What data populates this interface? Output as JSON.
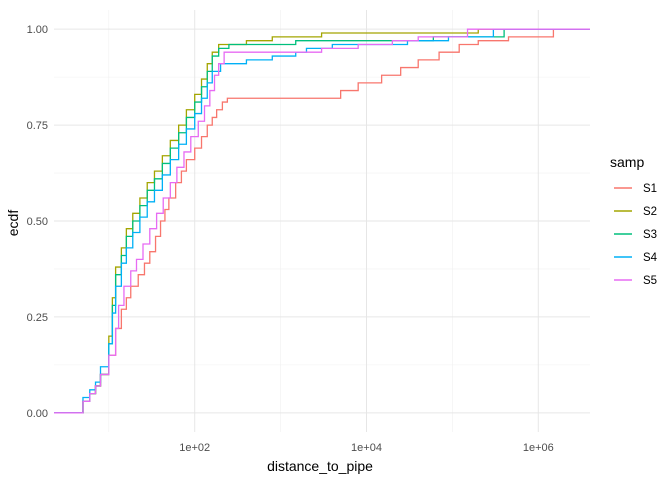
{
  "chart_data": {
    "type": "line",
    "subtype": "ecdf-step",
    "xlabel": "distance_to_pipe",
    "ylabel": "ecdf",
    "x_scale": "log10",
    "xlim": [
      2.3,
      4000000
    ],
    "ylim": [
      -0.05,
      1.05
    ],
    "x_ticks": [
      {
        "value": 100,
        "label": "1e+02"
      },
      {
        "value": 10000,
        "label": "1e+04"
      },
      {
        "value": 1000000,
        "label": "1e+06"
      }
    ],
    "y_ticks": [
      {
        "value": 0,
        "label": "0.00"
      },
      {
        "value": 0.25,
        "label": "0.25"
      },
      {
        "value": 0.5,
        "label": "0.50"
      },
      {
        "value": 0.75,
        "label": "0.75"
      },
      {
        "value": 1,
        "label": "1.00"
      }
    ],
    "grid": true,
    "legend": {
      "title": "samp",
      "position": "right"
    },
    "series": [
      {
        "name": "S1",
        "color": "#F8766D",
        "points": [
          [
            2.3,
            0
          ],
          [
            5,
            0
          ],
          [
            5,
            0.03
          ],
          [
            6,
            0.03
          ],
          [
            6,
            0.05
          ],
          [
            7,
            0.05
          ],
          [
            7,
            0.07
          ],
          [
            8,
            0.07
          ],
          [
            8,
            0.1
          ],
          [
            10,
            0.1
          ],
          [
            10,
            0.15
          ],
          [
            12,
            0.15
          ],
          [
            12,
            0.22
          ],
          [
            14,
            0.22
          ],
          [
            14,
            0.27
          ],
          [
            16,
            0.27
          ],
          [
            16,
            0.3
          ],
          [
            18,
            0.3
          ],
          [
            18,
            0.33
          ],
          [
            22,
            0.33
          ],
          [
            22,
            0.36
          ],
          [
            26,
            0.36
          ],
          [
            26,
            0.39
          ],
          [
            30,
            0.39
          ],
          [
            30,
            0.42
          ],
          [
            35,
            0.42
          ],
          [
            35,
            0.46
          ],
          [
            40,
            0.46
          ],
          [
            40,
            0.5
          ],
          [
            45,
            0.5
          ],
          [
            45,
            0.53
          ],
          [
            50,
            0.53
          ],
          [
            50,
            0.56
          ],
          [
            60,
            0.56
          ],
          [
            60,
            0.6
          ],
          [
            70,
            0.6
          ],
          [
            70,
            0.63
          ],
          [
            80,
            0.63
          ],
          [
            80,
            0.66
          ],
          [
            100,
            0.66
          ],
          [
            100,
            0.69
          ],
          [
            120,
            0.69
          ],
          [
            120,
            0.72
          ],
          [
            140,
            0.72
          ],
          [
            140,
            0.75
          ],
          [
            160,
            0.75
          ],
          [
            160,
            0.77
          ],
          [
            180,
            0.77
          ],
          [
            180,
            0.79
          ],
          [
            210,
            0.79
          ],
          [
            210,
            0.81
          ],
          [
            240,
            0.81
          ],
          [
            240,
            0.82
          ],
          [
            5000,
            0.82
          ],
          [
            5000,
            0.84
          ],
          [
            8000,
            0.84
          ],
          [
            8000,
            0.86
          ],
          [
            15000,
            0.86
          ],
          [
            15000,
            0.88
          ],
          [
            25000,
            0.88
          ],
          [
            25000,
            0.9
          ],
          [
            40000,
            0.9
          ],
          [
            40000,
            0.92
          ],
          [
            70000,
            0.92
          ],
          [
            70000,
            0.94
          ],
          [
            120000,
            0.94
          ],
          [
            120000,
            0.96
          ],
          [
            200000,
            0.96
          ],
          [
            200000,
            0.97
          ],
          [
            450000,
            0.97
          ],
          [
            450000,
            0.98
          ],
          [
            1500000,
            0.98
          ],
          [
            1500000,
            1.0
          ],
          [
            4000000,
            1.0
          ]
        ]
      },
      {
        "name": "S2",
        "color": "#A3A500",
        "points": [
          [
            2.3,
            0
          ],
          [
            5,
            0
          ],
          [
            5,
            0.03
          ],
          [
            6,
            0.03
          ],
          [
            6,
            0.05
          ],
          [
            7,
            0.05
          ],
          [
            7,
            0.07
          ],
          [
            8,
            0.07
          ],
          [
            8,
            0.1
          ],
          [
            10,
            0.1
          ],
          [
            10,
            0.2
          ],
          [
            11,
            0.2
          ],
          [
            11,
            0.3
          ],
          [
            12,
            0.3
          ],
          [
            12,
            0.38
          ],
          [
            14,
            0.38
          ],
          [
            14,
            0.43
          ],
          [
            16,
            0.43
          ],
          [
            16,
            0.48
          ],
          [
            19,
            0.48
          ],
          [
            19,
            0.52
          ],
          [
            23,
            0.52
          ],
          [
            23,
            0.56
          ],
          [
            28,
            0.56
          ],
          [
            28,
            0.6
          ],
          [
            34,
            0.6
          ],
          [
            34,
            0.63
          ],
          [
            42,
            0.63
          ],
          [
            42,
            0.67
          ],
          [
            52,
            0.67
          ],
          [
            52,
            0.71
          ],
          [
            65,
            0.71
          ],
          [
            65,
            0.75
          ],
          [
            80,
            0.75
          ],
          [
            80,
            0.79
          ],
          [
            100,
            0.79
          ],
          [
            100,
            0.83
          ],
          [
            120,
            0.83
          ],
          [
            120,
            0.87
          ],
          [
            140,
            0.87
          ],
          [
            140,
            0.91
          ],
          [
            160,
            0.91
          ],
          [
            160,
            0.94
          ],
          [
            190,
            0.94
          ],
          [
            190,
            0.96
          ],
          [
            400,
            0.96
          ],
          [
            400,
            0.97
          ],
          [
            800,
            0.97
          ],
          [
            800,
            0.98
          ],
          [
            3000,
            0.98
          ],
          [
            3000,
            0.99
          ],
          [
            200000,
            0.99
          ],
          [
            200000,
            1.0
          ],
          [
            4000000,
            1.0
          ]
        ]
      },
      {
        "name": "S3",
        "color": "#00BF7D",
        "points": [
          [
            2.3,
            0
          ],
          [
            5,
            0
          ],
          [
            5,
            0.03
          ],
          [
            6,
            0.03
          ],
          [
            6,
            0.05
          ],
          [
            7,
            0.05
          ],
          [
            7,
            0.07
          ],
          [
            8,
            0.07
          ],
          [
            8,
            0.1
          ],
          [
            10,
            0.1
          ],
          [
            10,
            0.18
          ],
          [
            11,
            0.18
          ],
          [
            11,
            0.28
          ],
          [
            12,
            0.28
          ],
          [
            12,
            0.36
          ],
          [
            14,
            0.36
          ],
          [
            14,
            0.41
          ],
          [
            16,
            0.41
          ],
          [
            16,
            0.46
          ],
          [
            19,
            0.46
          ],
          [
            19,
            0.5
          ],
          [
            23,
            0.5
          ],
          [
            23,
            0.54
          ],
          [
            28,
            0.54
          ],
          [
            28,
            0.58
          ],
          [
            34,
            0.58
          ],
          [
            34,
            0.61
          ],
          [
            42,
            0.61
          ],
          [
            42,
            0.65
          ],
          [
            52,
            0.65
          ],
          [
            52,
            0.69
          ],
          [
            65,
            0.69
          ],
          [
            65,
            0.73
          ],
          [
            80,
            0.73
          ],
          [
            80,
            0.77
          ],
          [
            100,
            0.77
          ],
          [
            100,
            0.81
          ],
          [
            120,
            0.81
          ],
          [
            120,
            0.85
          ],
          [
            140,
            0.85
          ],
          [
            140,
            0.89
          ],
          [
            160,
            0.89
          ],
          [
            160,
            0.93
          ],
          [
            190,
            0.93
          ],
          [
            190,
            0.95
          ],
          [
            250,
            0.95
          ],
          [
            250,
            0.96
          ],
          [
            1500,
            0.96
          ],
          [
            1500,
            0.97
          ],
          [
            60000,
            0.97
          ],
          [
            60000,
            0.98
          ],
          [
            400000,
            0.98
          ],
          [
            400000,
            1.0
          ],
          [
            4000000,
            1.0
          ]
        ]
      },
      {
        "name": "S4",
        "color": "#00B0F6",
        "points": [
          [
            2.3,
            0
          ],
          [
            5,
            0
          ],
          [
            5,
            0.04
          ],
          [
            6,
            0.04
          ],
          [
            6,
            0.06
          ],
          [
            7,
            0.06
          ],
          [
            7,
            0.08
          ],
          [
            8,
            0.08
          ],
          [
            8,
            0.12
          ],
          [
            10,
            0.12
          ],
          [
            10,
            0.18
          ],
          [
            11,
            0.18
          ],
          [
            11,
            0.26
          ],
          [
            12,
            0.26
          ],
          [
            12,
            0.33
          ],
          [
            14,
            0.33
          ],
          [
            14,
            0.39
          ],
          [
            16,
            0.39
          ],
          [
            16,
            0.43
          ],
          [
            19,
            0.43
          ],
          [
            19,
            0.47
          ],
          [
            23,
            0.47
          ],
          [
            23,
            0.51
          ],
          [
            28,
            0.51
          ],
          [
            28,
            0.55
          ],
          [
            34,
            0.55
          ],
          [
            34,
            0.58
          ],
          [
            42,
            0.58
          ],
          [
            42,
            0.62
          ],
          [
            52,
            0.62
          ],
          [
            52,
            0.66
          ],
          [
            65,
            0.66
          ],
          [
            65,
            0.7
          ],
          [
            80,
            0.7
          ],
          [
            80,
            0.74
          ],
          [
            100,
            0.74
          ],
          [
            100,
            0.78
          ],
          [
            120,
            0.78
          ],
          [
            120,
            0.82
          ],
          [
            140,
            0.82
          ],
          [
            140,
            0.86
          ],
          [
            160,
            0.86
          ],
          [
            160,
            0.89
          ],
          [
            200,
            0.89
          ],
          [
            200,
            0.91
          ],
          [
            400,
            0.91
          ],
          [
            400,
            0.92
          ],
          [
            800,
            0.92
          ],
          [
            800,
            0.93
          ],
          [
            1500,
            0.93
          ],
          [
            1500,
            0.94
          ],
          [
            2000,
            0.94
          ],
          [
            2000,
            0.95
          ],
          [
            4000,
            0.95
          ],
          [
            4000,
            0.96
          ],
          [
            30000,
            0.96
          ],
          [
            30000,
            0.97
          ],
          [
            90000,
            0.97
          ],
          [
            90000,
            0.98
          ],
          [
            300000,
            0.98
          ],
          [
            300000,
            1.0
          ],
          [
            4000000,
            1.0
          ]
        ]
      },
      {
        "name": "S5",
        "color": "#E76BF3",
        "points": [
          [
            2.3,
            0
          ],
          [
            5,
            0
          ],
          [
            5,
            0.03
          ],
          [
            6,
            0.03
          ],
          [
            6,
            0.05
          ],
          [
            7,
            0.05
          ],
          [
            7,
            0.07
          ],
          [
            8,
            0.07
          ],
          [
            8,
            0.1
          ],
          [
            10,
            0.1
          ],
          [
            10,
            0.15
          ],
          [
            12,
            0.15
          ],
          [
            12,
            0.22
          ],
          [
            13,
            0.22
          ],
          [
            13,
            0.28
          ],
          [
            15,
            0.28
          ],
          [
            15,
            0.33
          ],
          [
            18,
            0.33
          ],
          [
            18,
            0.37
          ],
          [
            21,
            0.37
          ],
          [
            21,
            0.4
          ],
          [
            25,
            0.4
          ],
          [
            25,
            0.44
          ],
          [
            30,
            0.44
          ],
          [
            30,
            0.48
          ],
          [
            36,
            0.48
          ],
          [
            36,
            0.52
          ],
          [
            43,
            0.52
          ],
          [
            43,
            0.56
          ],
          [
            52,
            0.56
          ],
          [
            52,
            0.6
          ],
          [
            62,
            0.6
          ],
          [
            62,
            0.64
          ],
          [
            75,
            0.64
          ],
          [
            75,
            0.68
          ],
          [
            90,
            0.68
          ],
          [
            90,
            0.72
          ],
          [
            110,
            0.72
          ],
          [
            110,
            0.76
          ],
          [
            130,
            0.76
          ],
          [
            130,
            0.8
          ],
          [
            150,
            0.8
          ],
          [
            150,
            0.84
          ],
          [
            170,
            0.84
          ],
          [
            170,
            0.88
          ],
          [
            190,
            0.88
          ],
          [
            190,
            0.91
          ],
          [
            220,
            0.91
          ],
          [
            220,
            0.94
          ],
          [
            3000,
            0.94
          ],
          [
            3000,
            0.95
          ],
          [
            8000,
            0.95
          ],
          [
            8000,
            0.96
          ],
          [
            20000,
            0.96
          ],
          [
            20000,
            0.97
          ],
          [
            40000,
            0.97
          ],
          [
            40000,
            0.98
          ],
          [
            150000,
            0.98
          ],
          [
            150000,
            1.0
          ],
          [
            4000000,
            1.0
          ]
        ]
      }
    ]
  }
}
